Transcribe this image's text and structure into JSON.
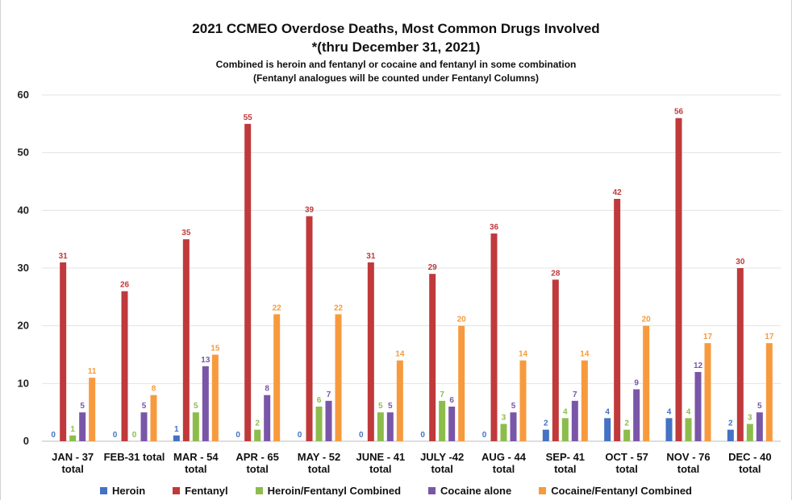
{
  "chart_data": {
    "type": "bar",
    "title": "2021 CCMEO Overdose Deaths, Most Common Drugs Involved",
    "subtitle": "*(thru December 31, 2021)",
    "notes": [
      "Combined is heroin and fentanyl or cocaine and fentanyl in some combination",
      "(Fentanyl analogues will be counted under Fentanyl Columns)"
    ],
    "xlabel": "",
    "ylabel": "",
    "ylim": [
      0,
      60
    ],
    "yticks": [
      0,
      10,
      20,
      30,
      40,
      50,
      60
    ],
    "grid": true,
    "legend_position": "bottom",
    "categories": [
      [
        "JAN - 37",
        "total"
      ],
      [
        "FEB-31 total"
      ],
      [
        "MAR - 54",
        "total"
      ],
      [
        "APR - 65",
        "total"
      ],
      [
        "MAY - 52",
        "total"
      ],
      [
        "JUNE - 41",
        "total"
      ],
      [
        "JULY -42",
        "total"
      ],
      [
        "AUG - 44",
        "total"
      ],
      [
        "SEP- 41",
        "total"
      ],
      [
        "OCT - 57",
        "total"
      ],
      [
        "NOV - 76",
        "total"
      ],
      [
        "DEC - 40",
        "total"
      ]
    ],
    "series": [
      {
        "name": "Heroin",
        "color": "#4472c4",
        "values": [
          0,
          0,
          1,
          0,
          0,
          0,
          0,
          0,
          2,
          4,
          4,
          2
        ]
      },
      {
        "name": "Fentanyl",
        "color": "#c0393b",
        "values": [
          31,
          26,
          35,
          55,
          39,
          31,
          29,
          36,
          28,
          42,
          56,
          30
        ]
      },
      {
        "name": "Heroin/Fentanyl Combined",
        "color": "#8cbd4c",
        "values": [
          1,
          0,
          5,
          2,
          6,
          5,
          7,
          3,
          4,
          2,
          4,
          3
        ]
      },
      {
        "name": "Cocaine alone",
        "color": "#7a56a8",
        "values": [
          5,
          5,
          13,
          8,
          7,
          5,
          6,
          5,
          7,
          9,
          12,
          5
        ]
      },
      {
        "name": "Cocaine/Fentanyl Combined",
        "color": "#f79a3e",
        "values": [
          11,
          8,
          15,
          22,
          22,
          14,
          20,
          14,
          14,
          20,
          17,
          17
        ]
      }
    ]
  }
}
